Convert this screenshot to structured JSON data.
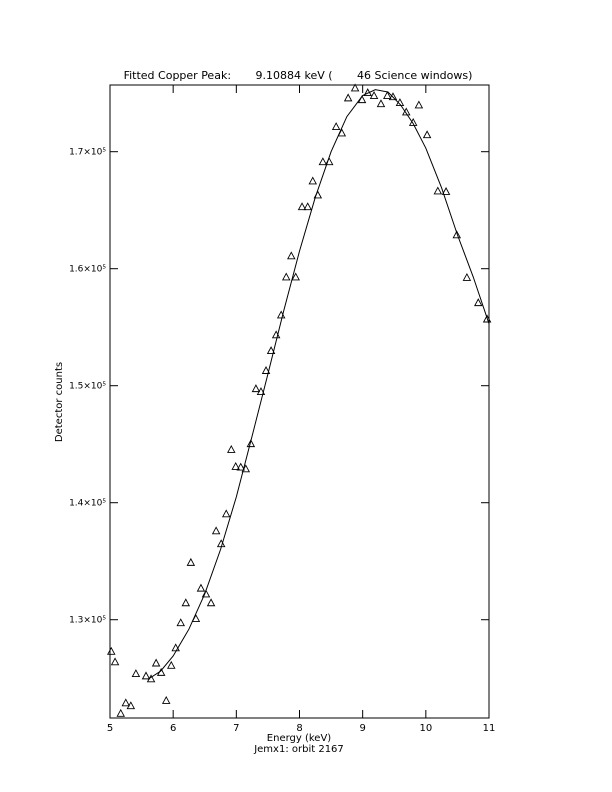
{
  "chart_data": {
    "type": "scatter",
    "title": "Fitted Copper Peak:       9.10884 keV (       46 Science windows)",
    "xlabel": "Energy (keV)",
    "subtitle": "Jemx1: orbit 2167",
    "ylabel": "Detector counts",
    "xlim": [
      5,
      11
    ],
    "xticks": [
      5,
      6,
      7,
      8,
      9,
      10,
      11
    ],
    "ylim": [
      121600,
      175700
    ],
    "yticks": [
      {
        "value": 130000,
        "label": "1.3×10⁵"
      },
      {
        "value": 140000,
        "label": "1.4×10⁵"
      },
      {
        "value": 150000,
        "label": "1.5×10⁵"
      },
      {
        "value": 160000,
        "label": "1.6×10⁵"
      },
      {
        "value": 170000,
        "label": "1.7×10⁵"
      }
    ],
    "series": [
      {
        "type": "scatter",
        "marker": "triangle",
        "color": "#000000",
        "x": [
          5.02,
          5.08,
          5.17,
          5.25,
          5.33,
          5.41,
          5.57,
          5.65,
          5.73,
          5.81,
          5.89,
          5.97,
          6.04,
          6.12,
          6.2,
          6.28,
          6.36,
          6.44,
          6.52,
          6.6,
          6.68,
          6.76,
          6.84,
          6.92,
          6.99,
          7.07,
          7.15,
          7.23,
          7.31,
          7.39,
          7.47,
          7.55,
          7.63,
          7.71,
          7.79,
          7.87,
          7.94,
          8.04,
          8.13,
          8.21,
          8.29,
          8.37,
          8.47,
          8.58,
          8.67,
          8.77,
          8.88,
          8.99,
          9.08,
          9.18,
          9.29,
          9.39,
          9.48,
          9.59,
          9.69,
          9.8,
          9.89,
          10.02,
          10.19,
          10.32,
          10.49,
          10.65,
          10.83,
          10.97
        ],
        "values": [
          127300,
          126400,
          122000,
          122900,
          122650,
          125400,
          125200,
          124950,
          126300,
          125500,
          123100,
          126100,
          127600,
          129750,
          131450,
          134900,
          130100,
          132700,
          132200,
          131450,
          137600,
          136500,
          139050,
          144550,
          143100,
          143050,
          142900,
          145050,
          149750,
          149500,
          151300,
          153000,
          154350,
          156050,
          159300,
          161100,
          159300,
          165300,
          165300,
          167500,
          166300,
          169150,
          169150,
          172150,
          171600,
          174600,
          175450,
          174450,
          175050,
          174800,
          174100,
          174800,
          174700,
          174200,
          173400,
          172500,
          174000,
          171450,
          166650,
          166600,
          162900,
          159250,
          157100,
          155700
        ]
      },
      {
        "type": "line",
        "color": "#000000",
        "x": [
          5.6,
          5.8,
          6.0,
          6.25,
          6.5,
          6.75,
          7.0,
          7.25,
          7.5,
          7.75,
          8.0,
          8.25,
          8.5,
          8.75,
          9.0,
          9.2,
          9.4,
          9.6,
          9.8,
          10.0,
          10.25,
          10.5,
          10.75,
          11.0
        ],
        "values": [
          124900,
          125600,
          126900,
          129200,
          132200,
          136000,
          140500,
          145700,
          151000,
          156400,
          161500,
          166100,
          170000,
          173000,
          174800,
          175300,
          175100,
          174000,
          172400,
          170300,
          166900,
          162900,
          159300,
          155300
        ]
      }
    ]
  }
}
